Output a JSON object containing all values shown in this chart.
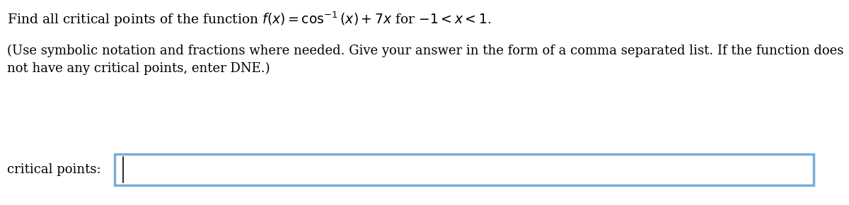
{
  "background_color": "#ffffff",
  "line1": "Find all critical points of the function $f(x) = \\cos^{-1}(x) + 7x$ for $-1 < x < 1$.",
  "line2": "(Use symbolic notation and fractions where needed. Give your answer in the form of a comma separated list. If the function does",
  "line3": "not have any critical points, enter DNE.)",
  "label": "critical points:",
  "text_color": "#000000",
  "box_border_color": "#7aaed6",
  "box_fill_color": "#ffffff",
  "font_size_line1": 13.5,
  "font_size_line2": 13,
  "font_size_label": 13
}
